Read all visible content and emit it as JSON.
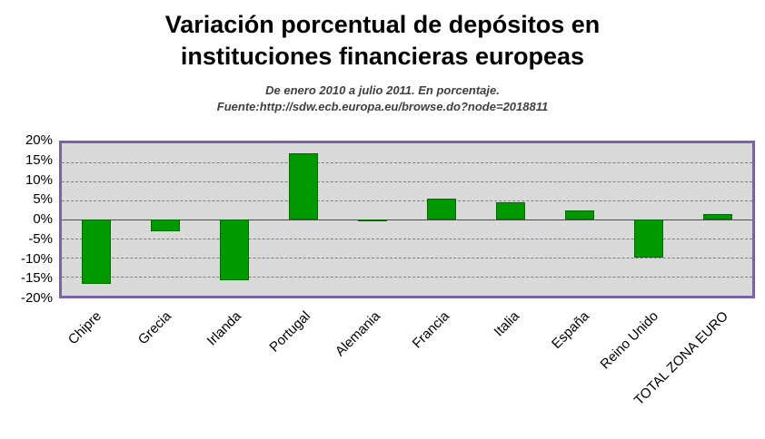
{
  "chart_data": {
    "type": "bar",
    "title": "Variación porcentual de depósitos en instituciones financieras europeas",
    "subtitle1": "De enero 2010 a julio 2011. En porcentaje.",
    "subtitle2": "Fuente:http://sdw.ecb.europa.eu/browse.do?node=2018811",
    "categories": [
      "Chipre",
      "Grecia",
      "Irlanda",
      "Portugal",
      "Alemania",
      "Francia",
      "Italia",
      "España",
      "Reino Unido",
      "TOTAL ZONA EURO"
    ],
    "values": [
      -17,
      -3,
      -16,
      17.5,
      -0.5,
      5.5,
      4.5,
      2.5,
      -10,
      1.5
    ],
    "xlabel": "",
    "ylabel": "",
    "ylim": [
      -20,
      20
    ],
    "ytick_step": 5,
    "ytick_labels": [
      "20%",
      "15%",
      "10%",
      "5%",
      "0%",
      "-5%",
      "-10%",
      "-15%",
      "-20%"
    ],
    "grid": true,
    "legend": "none",
    "bar_color": "#009a00",
    "bar_border_color": "#006b00",
    "plot_background_color": "#d9d9d9",
    "plot_border_color": "#7a62a8"
  }
}
